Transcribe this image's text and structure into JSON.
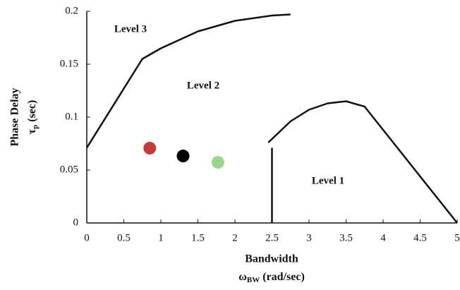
{
  "chart_data": {
    "type": "scatter",
    "x_label": "Bandwidth",
    "x_symbol": "ω",
    "x_symbol_sub": "BW",
    "x_unit": "(rad/sec)",
    "y_label": "Phase Delay",
    "y_symbol": "τ",
    "y_symbol_sub": "p",
    "y_unit": "(sec)",
    "annotations": [
      "Level 3",
      "Level 2",
      "Level 1"
    ],
    "xlim": [
      0,
      5
    ],
    "ylim": [
      0,
      0.2
    ],
    "xticks": [
      0,
      0.5,
      1,
      1.5,
      2,
      2.5,
      3,
      3.5,
      4,
      4.5,
      5
    ],
    "yticks": [
      0,
      0.05,
      0.1,
      0.15,
      0.2
    ],
    "line_color": "#111111",
    "boundaries": [
      {
        "x": [
          0,
          0.75,
          1,
          1.5,
          2,
          2.5,
          2.75
        ],
        "y": [
          0.071,
          0.155,
          0.165,
          0.181,
          0.191,
          0.196,
          0.197
        ]
      },
      {
        "x": [
          2.45,
          2.75,
          3,
          3.25,
          3.5,
          3.75,
          5
        ],
        "y": [
          0.076,
          0.096,
          0.107,
          0.113,
          0.115,
          0.11,
          0
        ]
      },
      {
        "x": [
          2.5,
          2.5
        ],
        "y": [
          0,
          0.071
        ]
      }
    ],
    "points": {
      "x": [
        0.85,
        1.3,
        1.77
      ],
      "y": [
        0.0707,
        0.0633,
        0.0573
      ],
      "colors": [
        "#c8393a",
        "#000000",
        "#98d888"
      ]
    }
  }
}
